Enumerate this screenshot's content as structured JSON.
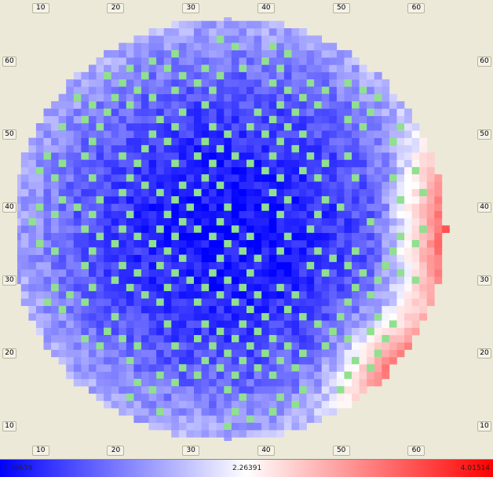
{
  "chart_data": {
    "type": "heatmap",
    "title": "",
    "xlabel": "",
    "ylabel": "",
    "x_ticks": [
      "10",
      "20",
      "30",
      "40",
      "50",
      "60"
    ],
    "y_ticks": [
      "10",
      "20",
      "30",
      "40",
      "50",
      "60"
    ],
    "xlim": [
      7,
      68
    ],
    "ylim": [
      8,
      66
    ],
    "grid_size": [
      57,
      57
    ],
    "wafer_center": [
      35,
      37
    ],
    "wafer_radius": 29,
    "color_scale": {
      "min_label": "1.38639",
      "mid_label": "2.26391",
      "max_label": "4.01514",
      "min": 1.38639,
      "mid": 2.26391,
      "max": 4.01514,
      "colors": [
        "#0000ff",
        "#ffffff",
        "#ff0000"
      ]
    },
    "site_color": "#90e090",
    "description_of_field": "Values lowest (blue) at center-left, rising to high (red) at right edge around y=30-45 and lower-right edge"
  }
}
